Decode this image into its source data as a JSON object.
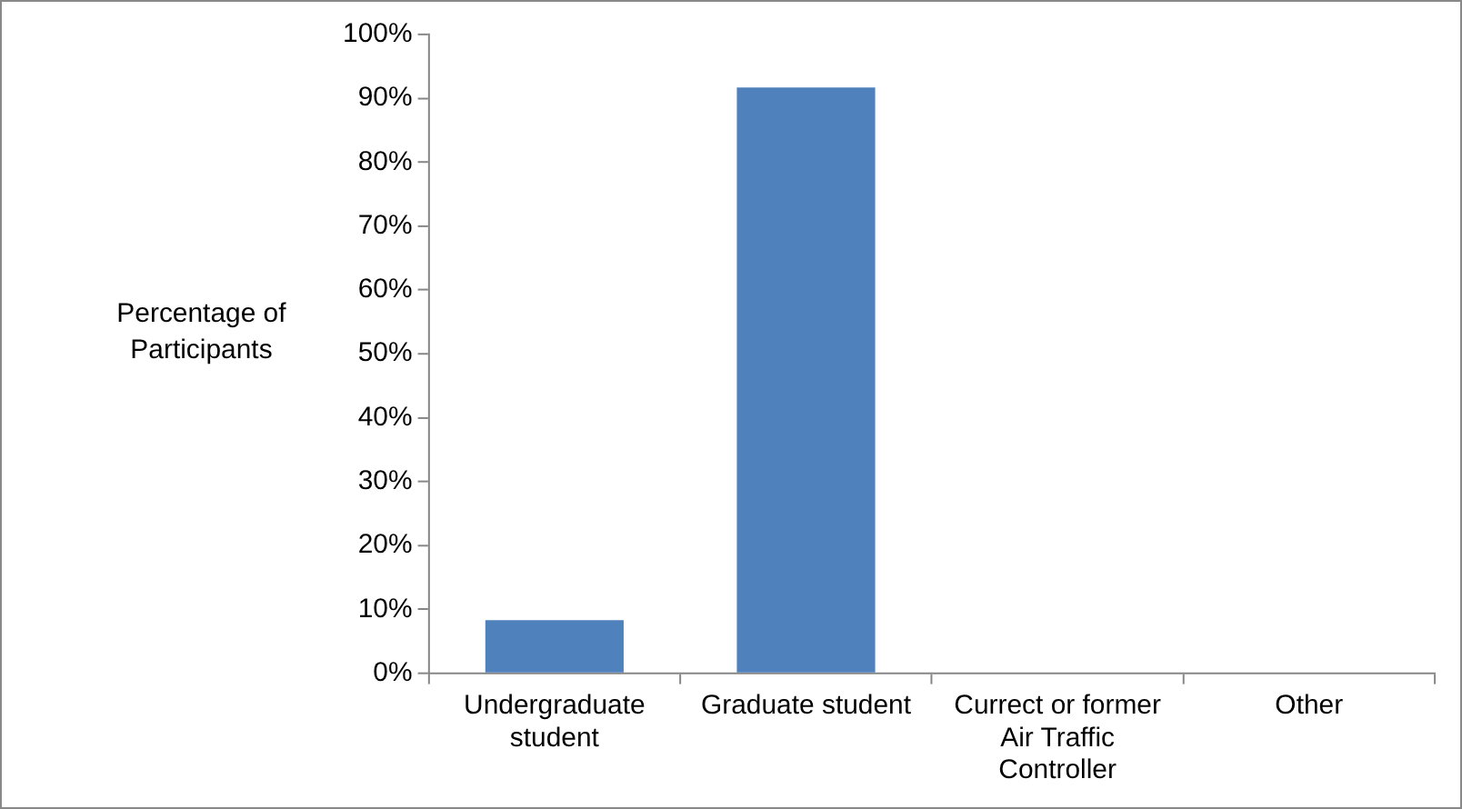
{
  "chart_data": {
    "type": "bar",
    "ylabel": "Percentage of Participants",
    "categories": [
      "Undergraduate student",
      "Graduate student",
      "Currect or former Air Traffic Controller",
      "Other"
    ],
    "values": [
      8.3,
      91.7,
      0,
      0
    ],
    "color": "#4f81bd",
    "ylim": [
      0,
      100
    ],
    "yticks": [
      {
        "value": 0,
        "label": "0%"
      },
      {
        "value": 10,
        "label": "10%"
      },
      {
        "value": 20,
        "label": "20%"
      },
      {
        "value": 30,
        "label": "30%"
      },
      {
        "value": 40,
        "label": "40%"
      },
      {
        "value": 50,
        "label": "50%"
      },
      {
        "value": 60,
        "label": "60%"
      },
      {
        "value": 70,
        "label": "70%"
      },
      {
        "value": 80,
        "label": "80%"
      },
      {
        "value": 90,
        "label": "90%"
      },
      {
        "value": 100,
        "label": "100%"
      }
    ],
    "grid": false,
    "legend": false
  }
}
